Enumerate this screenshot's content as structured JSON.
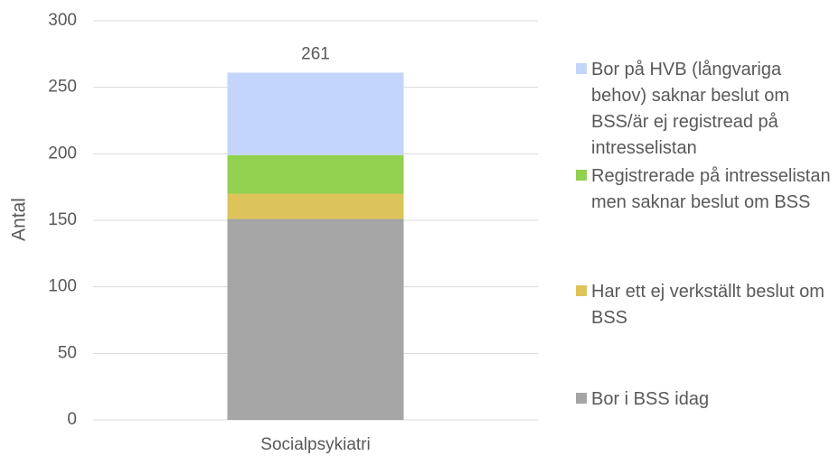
{
  "chart_data": {
    "type": "stacked_bar",
    "categories": [
      "Socialpsykiatri"
    ],
    "series": [
      {
        "name": "Bor i BSS idag",
        "color": "#a5a5a5",
        "values": [
          151
        ]
      },
      {
        "name": "Har ett ej verkställt beslut om BSS",
        "color": "#dcc45a",
        "values": [
          19
        ]
      },
      {
        "name": "Registrerade på intresselistan men saknar beslut om BSS",
        "color": "#92d050",
        "values": [
          29
        ]
      },
      {
        "name": "Bor på HVB (långvariga behov) saknar beslut om BSS/är ej registread på intresselistan",
        "color": "#c3d5fb",
        "values": [
          62
        ]
      }
    ],
    "total": 261,
    "ylabel": "Antal",
    "ylim": [
      0,
      300
    ],
    "yticks": [
      0,
      50,
      100,
      150,
      200,
      250,
      300
    ],
    "grid": true,
    "legend": "right"
  }
}
